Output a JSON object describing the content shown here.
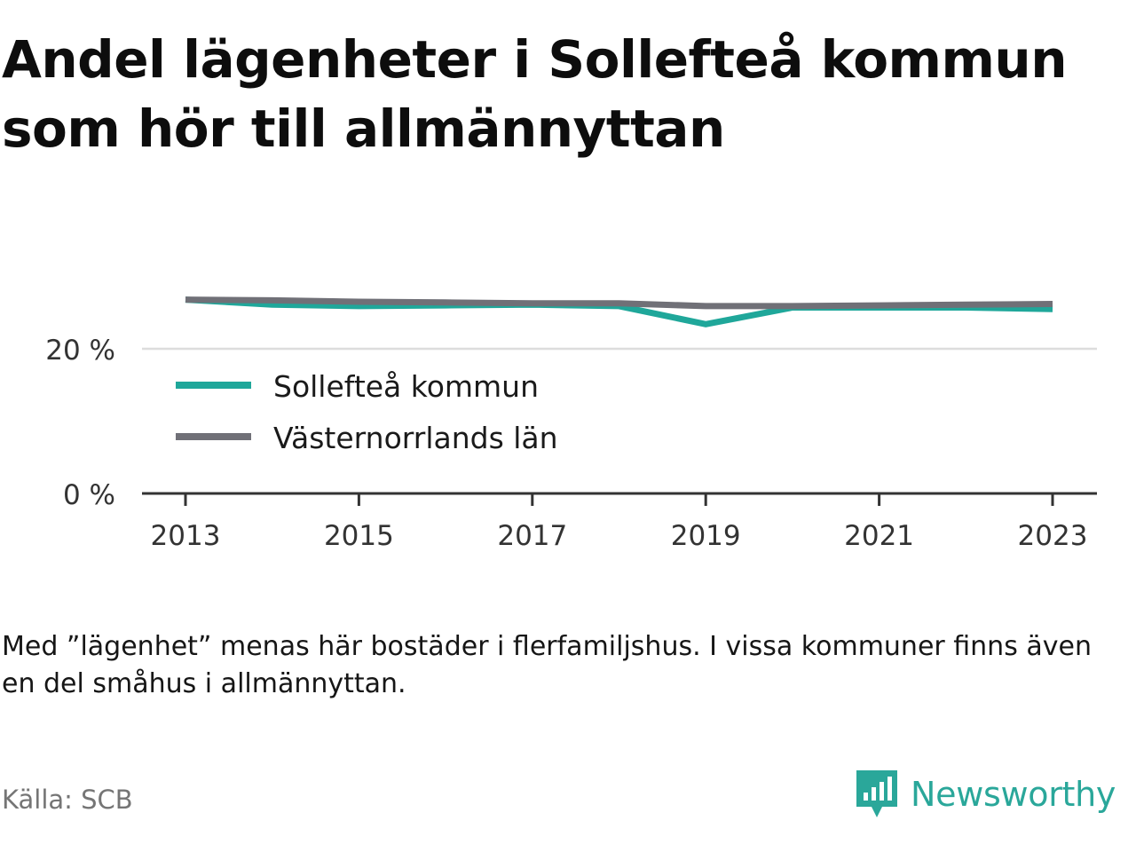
{
  "title": "Andel lägenheter i Sollefteå kommun som hör till allmännyttan",
  "note": "Med ”lägenhet” menas här bostäder i flerfamiljshus. I vissa kommuner finns även en del småhus i allmännyttan.",
  "source": "Källa: SCB",
  "brand": {
    "name": "Newsworthy",
    "logo_icon": "newsworthy-logo-icon"
  },
  "colors": {
    "teal": "#1fa79a",
    "gray": "#707077",
    "axis": "#333333",
    "grid": "#dddddd"
  },
  "chart_data": {
    "type": "line",
    "title": "Andel lägenheter i Sollefteå kommun som hör till allmännyttan",
    "xlabel": "",
    "ylabel": "",
    "x": [
      2013,
      2014,
      2015,
      2016,
      2017,
      2018,
      2019,
      2020,
      2021,
      2022,
      2023
    ],
    "series": [
      {
        "name": "Sollefteå kommun",
        "color": "#1fa79a",
        "values": [
          26.8,
          26.1,
          25.9,
          26.0,
          26.1,
          25.9,
          23.4,
          25.7,
          25.7,
          25.7,
          25.5
        ]
      },
      {
        "name": "Västernorrlands län",
        "color": "#707077",
        "values": [
          26.8,
          26.7,
          26.5,
          26.4,
          26.3,
          26.3,
          25.9,
          25.9,
          26.0,
          26.1,
          26.2
        ]
      }
    ],
    "xticks": [
      "2013",
      "2015",
      "2017",
      "2019",
      "2021",
      "2023"
    ],
    "yticks": [
      "0 %",
      "20 %"
    ],
    "ytick_values": [
      0,
      20
    ],
    "xlim": [
      2013,
      2023
    ],
    "ylim": [
      0,
      32
    ],
    "grid": true,
    "legend": "inside-bottom-left"
  }
}
